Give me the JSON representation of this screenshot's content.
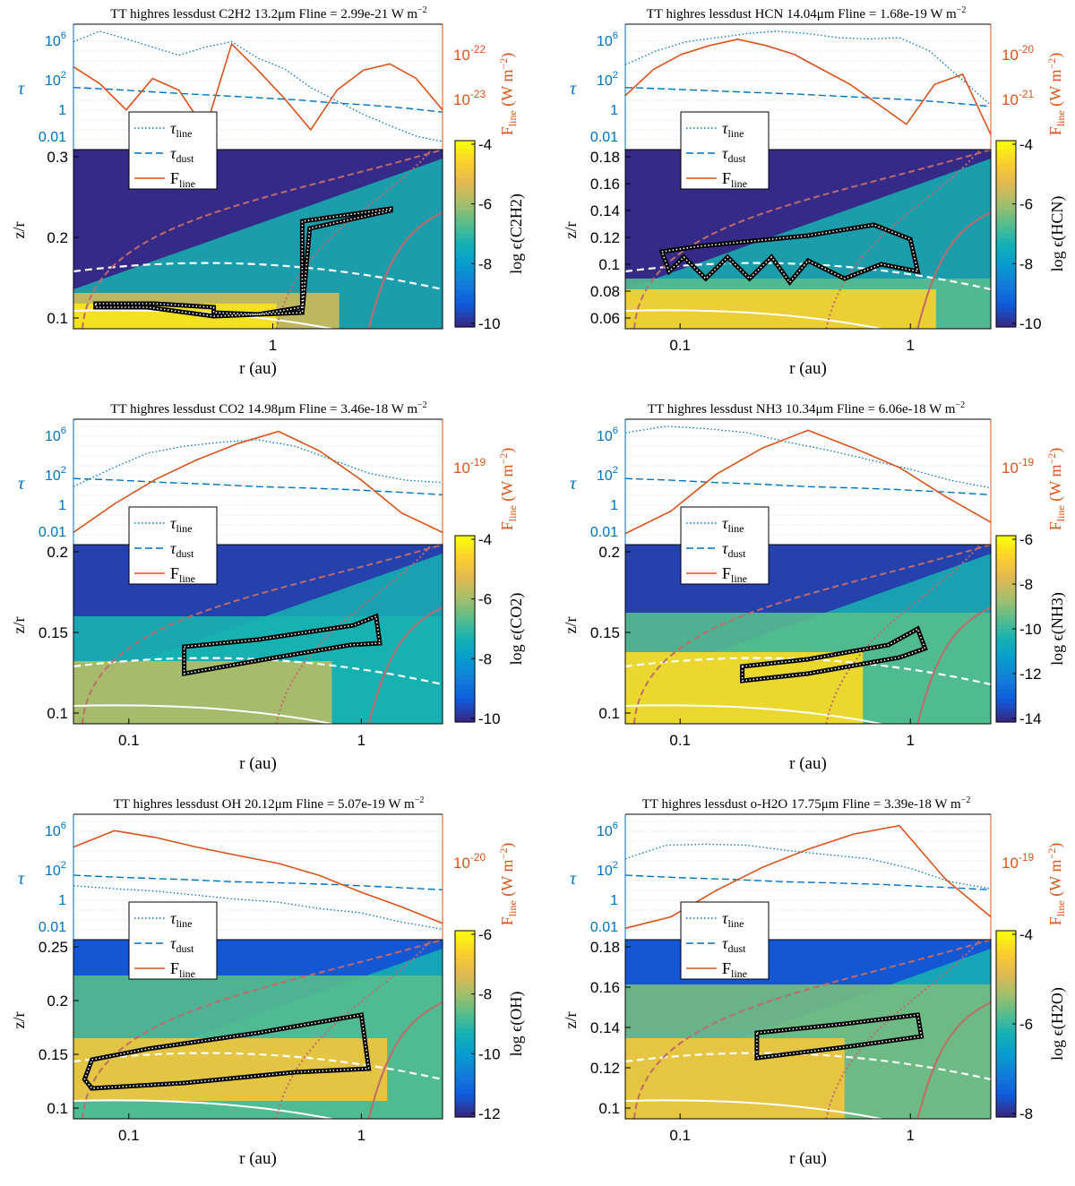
{
  "figure": {
    "common": {
      "xlabel": "r (au)",
      "zlabel": "z/r",
      "tau_symbol": "τ",
      "flux_label_main": "F",
      "flux_label_sub": "line",
      "flux_label_unit": "(W m",
      "flux_label_unit_end": ")",
      "legend": [
        {
          "label": "τ",
          "sub": "line",
          "style": "dotted",
          "color": "#0072bd"
        },
        {
          "label": "τ",
          "sub": "dust",
          "style": "dashed",
          "color": "#0072bd"
        },
        {
          "label": "F",
          "sub": "line",
          "style": "solid",
          "color": "#d95319"
        }
      ],
      "tau_ticks": [
        "10^6",
        "10^2",
        "1",
        "0.01"
      ],
      "colors": {
        "tau": "#0072bd",
        "flux": "#d95319",
        "contour": "#c06a6a",
        "outline": "#000000",
        "parula_low": "#352a87",
        "parula_high": "#f9fb0e"
      }
    }
  },
  "chart_data": [
    {
      "type": "heatmap",
      "title": "TT highres lessdust C2H2 13.2μm Fline = 2.99e-21 W m",
      "title_sup": "−2",
      "species": "C2H2",
      "colorbar_label": "log ϵ(C2H2)",
      "colorbar_ticks": [
        "-4",
        "-6",
        "-8",
        "-10"
      ],
      "colorbar_range": [
        -10,
        -4
      ],
      "x_ticks": [
        "1"
      ],
      "y_ticks": [
        "0.3",
        "0.2",
        "0.1"
      ],
      "ylim": [
        0.03,
        0.3
      ],
      "flux_ticks": [
        "10^-22",
        "10^-23"
      ],
      "tau_line": [
        500000.0,
        3000000.0,
        800000.0,
        200000.0,
        50000.0,
        200000.0,
        500000.0,
        30000.0,
        5000.0,
        200,
        20,
        2,
        0.3,
        0.05,
        0.02
      ],
      "tau_dust": [
        200,
        150,
        100,
        70,
        50,
        35,
        25,
        15,
        10,
        6,
        3
      ],
      "flux": [
        9e-23,
        5e-23,
        2e-23,
        6e-23,
        4e-23,
        1e-23,
        2e-22,
        8e-23,
        3e-23,
        1e-23,
        4e-23,
        8e-23,
        1e-22,
        6e-23,
        2e-23
      ]
    },
    {
      "type": "heatmap",
      "title": "TT highres lessdust HCN 14.04μm Fline = 1.68e-19 W m",
      "title_sup": "−2",
      "species": "HCN",
      "colorbar_label": "log ϵ(HCN)",
      "colorbar_ticks": [
        "-4",
        "-6",
        "-8",
        "-10"
      ],
      "colorbar_range": [
        -10,
        -4
      ],
      "x_ticks": [
        "0.1",
        "1"
      ],
      "y_ticks": [
        "0.18",
        "0.16",
        "0.14",
        "0.12",
        "0.1",
        "0.08",
        "0.06"
      ],
      "ylim": [
        0.055,
        0.185
      ],
      "flux_ticks": [
        "10^-20",
        "10^-21"
      ],
      "tau_line": [
        10000.0,
        100000.0,
        500000.0,
        1000000.0,
        2000000.0,
        3000000.0,
        2000000.0,
        1000000.0,
        800000.0,
        1000000.0,
        100000.0,
        1000.0,
        10
      ],
      "tau_dust": [
        200,
        160,
        120,
        90,
        70,
        50,
        35,
        25,
        15,
        8
      ],
      "flux": [
        3e-21,
        1e-20,
        2e-20,
        3e-20,
        4e-20,
        3e-20,
        2e-20,
        1e-20,
        5e-21,
        2e-21,
        8e-22,
        5e-21,
        8e-21,
        5e-22
      ]
    },
    {
      "type": "heatmap",
      "title": "TT highres lessdust CO2 14.98μm Fline = 3.46e-18 W m",
      "title_sup": "−2",
      "species": "CO2",
      "colorbar_label": "log ϵ(CO2)",
      "colorbar_ticks": [
        "-4",
        "-6",
        "-8",
        "-10"
      ],
      "colorbar_range": [
        -10,
        -4
      ],
      "x_ticks": [
        "0.1",
        "1"
      ],
      "y_ticks": [
        "0.2",
        "0.15",
        "0.1"
      ],
      "ylim": [
        0.085,
        0.215
      ],
      "flux_ticks": [
        "10^-19"
      ],
      "tau_line": [
        100,
        2000.0,
        30000.0,
        100000.0,
        200000.0,
        300000.0,
        100000.0,
        10000.0,
        1000.0,
        300,
        200
      ],
      "tau_dust": [
        400,
        300,
        200,
        150,
        100,
        80,
        60,
        40,
        25
      ],
      "flux": [
        1e-21,
        5e-21,
        2e-20,
        6e-20,
        1.5e-19,
        3e-19,
        1e-19,
        2e-20,
        3e-21,
        1e-21
      ]
    },
    {
      "type": "heatmap",
      "title": "TT highres lessdust NH3 10.34μm Fline = 6.06e-18 W m",
      "title_sup": "−2",
      "species": "NH3",
      "colorbar_label": "log ϵ(NH3)",
      "colorbar_ticks": [
        "-6",
        "-8",
        "-10",
        "-12",
        "-14"
      ],
      "colorbar_range": [
        -14,
        -6
      ],
      "x_ticks": [
        "0.1",
        "1"
      ],
      "y_ticks": [
        "0.2",
        "0.15",
        "0.1"
      ],
      "ylim": [
        0.085,
        0.215
      ],
      "flux_ticks": [
        "10^-19"
      ],
      "tau_line": [
        1000000.0,
        3000000.0,
        2000000.0,
        1000000.0,
        200000.0,
        50000.0,
        10000.0,
        2000.0,
        300,
        80
      ],
      "tau_dust": [
        400,
        300,
        200,
        150,
        100,
        80,
        60,
        40,
        25
      ],
      "flux": [
        5e-22,
        2e-21,
        2e-20,
        1e-19,
        3e-19,
        1e-19,
        3e-20,
        5e-21,
        1e-21
      ]
    },
    {
      "type": "heatmap",
      "title": "TT highres lessdust OH 20.12μm Fline = 5.07e-19 W m",
      "title_sup": "−2",
      "species": "OH",
      "colorbar_label": "log ϵ(OH)",
      "colorbar_ticks": [
        "-6",
        "-8",
        "-10",
        "-12"
      ],
      "colorbar_range": [
        -12,
        -6
      ],
      "x_ticks": [
        "0.1",
        "1"
      ],
      "y_ticks": [
        "0.25",
        "0.2",
        "0.15",
        "0.1"
      ],
      "ylim": [
        0.07,
        0.29
      ],
      "flux_ticks": [
        "10^-20"
      ],
      "tau_line": [
        50,
        30,
        20,
        10,
        5,
        3,
        1,
        0.5,
        0.1,
        0.03
      ],
      "tau_dust": [
        300,
        200,
        150,
        100,
        80,
        60,
        40,
        25
      ],
      "flux": [
        1e-20,
        2e-20,
        1.5e-20,
        1e-20,
        7e-21,
        5e-21,
        3e-21,
        1.5e-21,
        8e-22,
        4e-22
      ]
    },
    {
      "type": "heatmap",
      "title": "TT highres lessdust o-H2O 17.75μm Fline = 3.39e-18 W m",
      "title_sup": "−2",
      "species": "H2O",
      "colorbar_label": "log ϵ(H2O)",
      "colorbar_ticks": [
        "-4",
        "-6",
        "-8"
      ],
      "colorbar_range": [
        -9,
        -3
      ],
      "x_ticks": [
        "0.1",
        "1"
      ],
      "y_ticks": [
        "0.18",
        "0.16",
        "0.14",
        "0.12",
        "0.1"
      ],
      "ylim": [
        0.085,
        0.19
      ],
      "flux_ticks": [
        "10^-19"
      ],
      "tau_line": [
        5000.0,
        50000.0,
        60000.0,
        50000.0,
        20000.0,
        10000.0,
        5000.0,
        1000.0,
        100,
        30
      ],
      "tau_dust": [
        300,
        200,
        150,
        100,
        80,
        60,
        40,
        25
      ],
      "flux": [
        5e-22,
        1e-21,
        5e-21,
        2e-20,
        6e-20,
        1.5e-19,
        2.5e-19,
        1e-20,
        1e-21
      ]
    }
  ]
}
